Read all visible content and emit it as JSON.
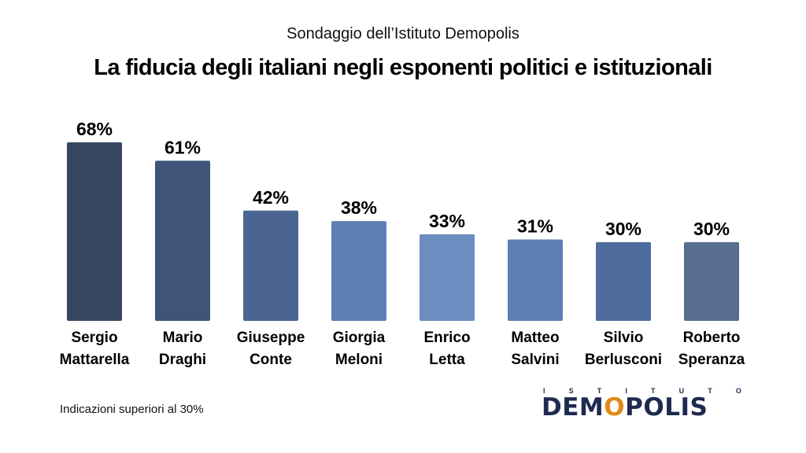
{
  "header": {
    "subtitle": "Sondaggio dell’Istituto Demopolis",
    "title": "La fiducia degli italiani negli esponenti politici e istituzionali"
  },
  "chart_data": {
    "type": "bar",
    "categories": [
      [
        "Sergio",
        "Mattarella"
      ],
      [
        "Mario",
        "Draghi"
      ],
      [
        "Giuseppe",
        "Conte"
      ],
      [
        "Giorgia",
        "Meloni"
      ],
      [
        "Enrico",
        "Letta"
      ],
      [
        "Matteo",
        "Salvini"
      ],
      [
        "Silvio",
        "Berlusconi"
      ],
      [
        "Roberto",
        "Speranza"
      ]
    ],
    "values": [
      68,
      61,
      42,
      38,
      33,
      31,
      30,
      30
    ],
    "value_labels": [
      "68%",
      "61%",
      "42%",
      "38%",
      "33%",
      "31%",
      "30%",
      "30%"
    ],
    "colors": [
      "#36465f",
      "#3f5478",
      "#4a6591",
      "#5e80b4",
      "#6b8dc0",
      "#5d7fb4",
      "#4f6c9e",
      "#586e8f"
    ],
    "unit": "%",
    "ylim": [
      0,
      68
    ],
    "title": "",
    "xlabel": "",
    "ylabel": "",
    "grid": false,
    "legend": "none"
  },
  "footnote": "Indicazioni superiori al  30%",
  "logo": {
    "top_letters": [
      "I",
      "S",
      "T",
      "I",
      "T",
      "U",
      "T",
      "O"
    ],
    "main_before": "DEM",
    "main_o": "O",
    "main_after": "POLIS"
  }
}
